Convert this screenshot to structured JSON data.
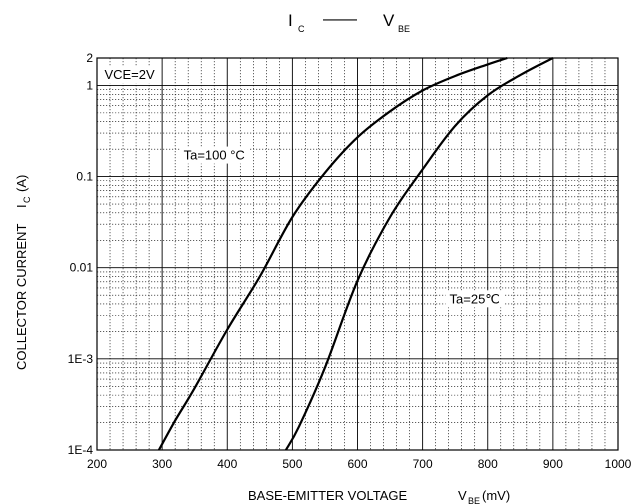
{
  "chart_data": {
    "type": "line",
    "title": {
      "main": "I",
      "main_sub": "C",
      "dash": "——",
      "second": "V",
      "second_sub": "BE"
    },
    "xlabel": {
      "text": "BASE-EMITTER VOLTAGE",
      "sym": "V",
      "sym_sub": "BE",
      "unit": "(mV)"
    },
    "ylabel": {
      "text": "COLLECTOR CURRENT",
      "sym": "I",
      "sym_sub": "C",
      "unit": "(A)"
    },
    "x_scale": "linear",
    "y_scale": "log",
    "xlim": [
      200,
      1000
    ],
    "ylim": [
      0.0001,
      2
    ],
    "x_ticks": [
      200,
      300,
      400,
      500,
      600,
      700,
      800,
      900,
      1000
    ],
    "x_tick_labels": [
      "200",
      "300",
      "400",
      "500",
      "600",
      "700",
      "800",
      "900",
      "1000"
    ],
    "y_ticks": [
      0.0001,
      0.001,
      0.01,
      0.1,
      1,
      2
    ],
    "y_tick_labels": [
      "1E-4",
      "1E-3",
      "0.01",
      "0.1",
      "1",
      "2"
    ],
    "grid": true,
    "annotations": [
      {
        "text": "VCE=2V",
        "x": 250,
        "y": 1.3
      },
      {
        "text": "Ta=100 °C",
        "x": 380,
        "y": 0.17
      },
      {
        "text": "Ta=25℃",
        "x": 780,
        "y": 0.0045
      }
    ],
    "series": [
      {
        "name": "Ta=100 °C",
        "x": [
          295,
          320,
          350,
          400,
          450,
          500,
          550,
          600,
          650,
          700,
          750,
          800,
          830
        ],
        "y": [
          0.0001,
          0.00021,
          0.00048,
          0.0021,
          0.008,
          0.036,
          0.11,
          0.27,
          0.52,
          0.88,
          1.27,
          1.7,
          2.0
        ]
      },
      {
        "name": "Ta=25℃",
        "x": [
          490,
          510,
          550,
          600,
          650,
          700,
          750,
          800,
          850,
          900
        ],
        "y": [
          0.0001,
          0.00018,
          0.0008,
          0.0072,
          0.036,
          0.12,
          0.36,
          0.78,
          1.3,
          2.0
        ]
      }
    ]
  }
}
